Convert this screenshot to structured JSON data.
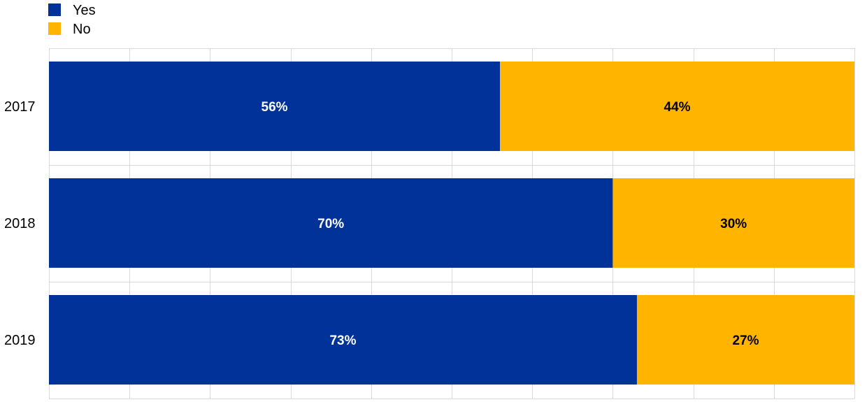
{
  "chart_data": {
    "type": "bar",
    "orientation": "horizontal",
    "stacked": true,
    "categories": [
      "2017",
      "2018",
      "2019"
    ],
    "series": [
      {
        "name": "Yes",
        "color": "#003299",
        "values": [
          56,
          70,
          73
        ],
        "labels": [
          "56%",
          "70%",
          "73%"
        ],
        "label_color": "#ffffff"
      },
      {
        "name": "No",
        "color": "#FFB400",
        "values": [
          44,
          30,
          27
        ],
        "labels": [
          "44%",
          "30%",
          "27%"
        ],
        "label_color": "#000000"
      }
    ],
    "xlim": [
      0,
      100
    ],
    "grid": true,
    "grid_color": "#d9d9d9",
    "legend_position": "top-left"
  }
}
